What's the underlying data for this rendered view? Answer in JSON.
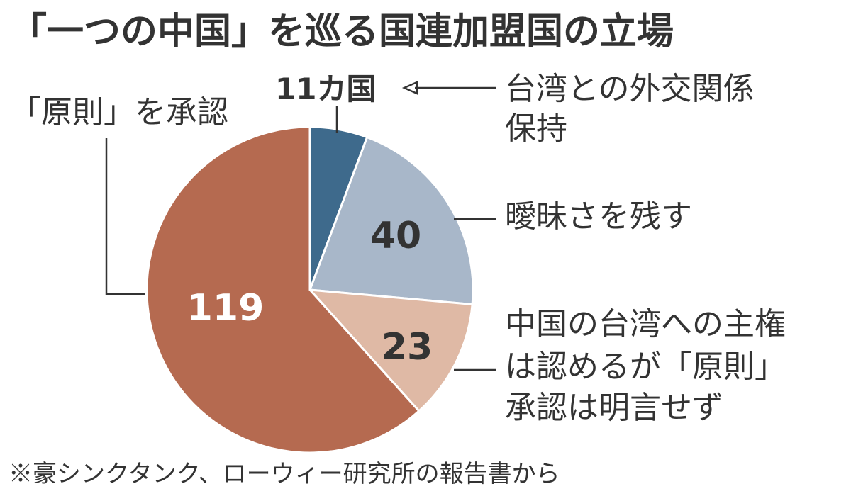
{
  "chart_data": {
    "type": "pie",
    "title": "「一つの中国」を巡る国連加盟国の立場",
    "slices": [
      {
        "key": "taiwan",
        "label_lines": [
          "台湾との外交関係",
          "保持"
        ],
        "value": 11,
        "value_text": "11カ国",
        "color": "#3e6a8c"
      },
      {
        "key": "ambiguous",
        "label_lines": [
          "曖昧さを残す"
        ],
        "value": 40,
        "value_text": "40",
        "color": "#a8b7c9"
      },
      {
        "key": "partial",
        "label_lines": [
          "中国の台湾への主権",
          "は認めるが「原則」",
          "承認は明言せず"
        ],
        "value": 23,
        "value_text": "23",
        "color": "#dfb9a5"
      },
      {
        "key": "principle",
        "label_lines": [
          "「原則」を承認"
        ],
        "value": 119,
        "value_text": "119",
        "color": "#b56a50"
      }
    ],
    "source": "※豪シンクタンク、ローウィー研究所の報告書から"
  }
}
